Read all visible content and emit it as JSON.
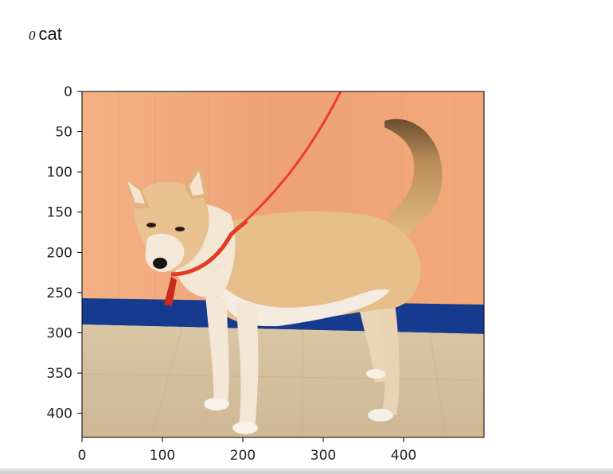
{
  "caption": {
    "index": "0",
    "label": "cat"
  },
  "chart_data": {
    "type": "image",
    "image_subject": "dog on red leash",
    "xlim": [
      0,
      500
    ],
    "ylim": [
      430,
      0
    ],
    "x_ticks": [
      0,
      100,
      200,
      300,
      400
    ],
    "y_ticks": [
      0,
      50,
      100,
      150,
      200,
      250,
      300,
      350,
      400
    ],
    "title": "",
    "xlabel": "",
    "ylabel": "",
    "grid": false
  },
  "colors": {
    "wall": "#f0a77a",
    "baseboard": "#153a8c",
    "floor": "#d7c3a0",
    "fur": "#e4bb84",
    "fur_light": "#f6ecdf",
    "leash": "#e8402a"
  }
}
